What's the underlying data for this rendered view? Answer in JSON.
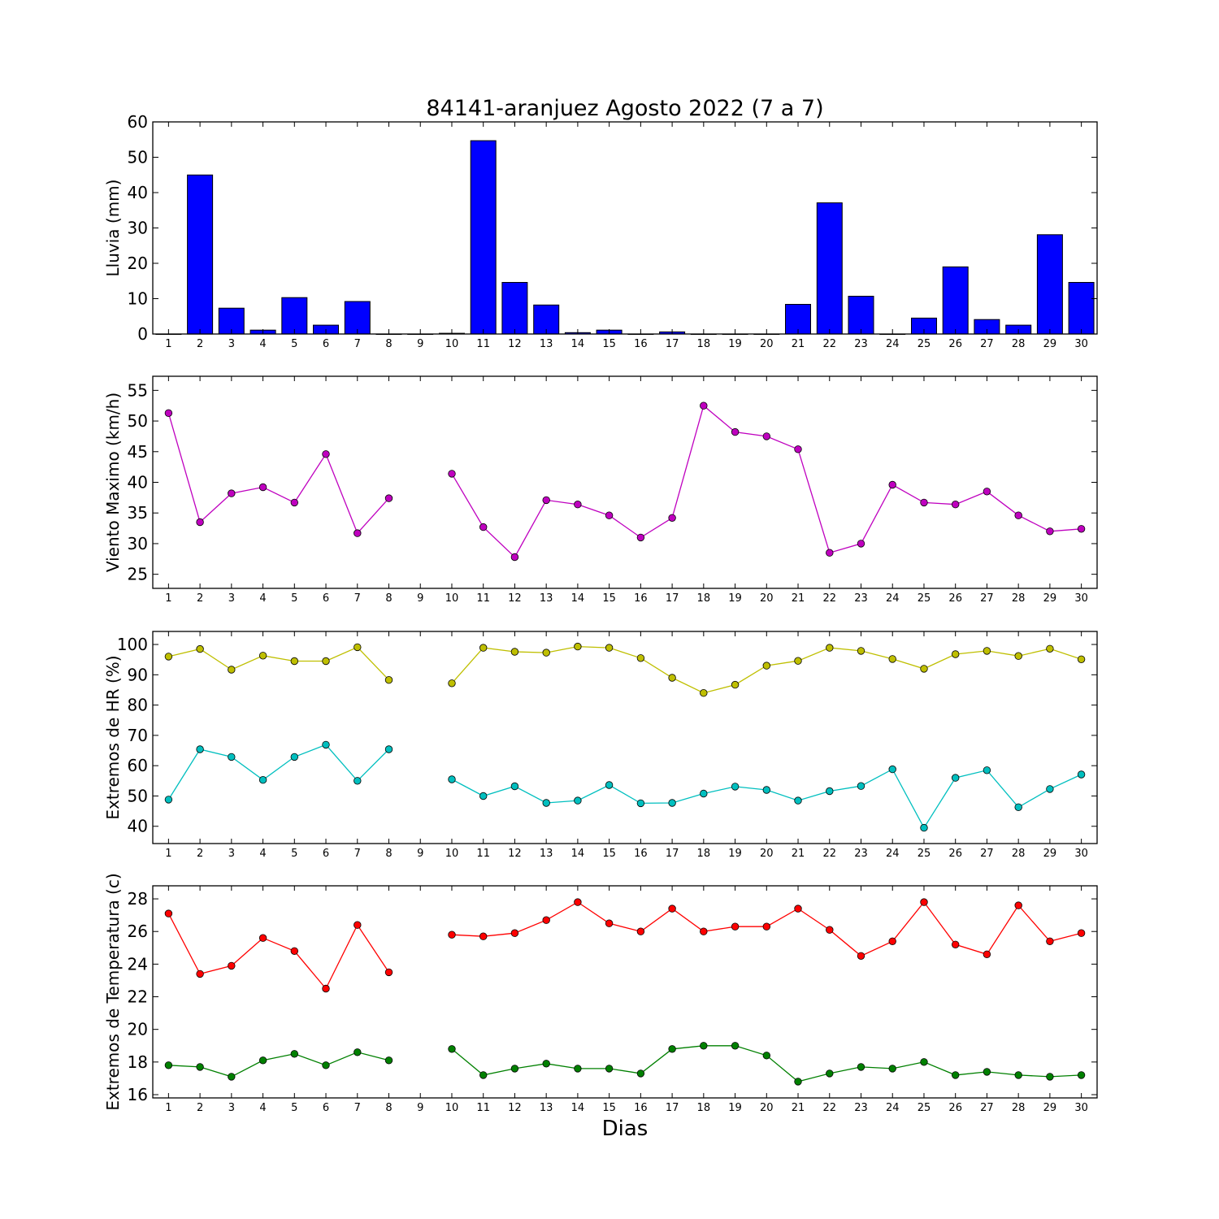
{
  "title": "84141-aranjuez Agosto 2022  (7 a 7)",
  "xlabel": "Dias",
  "chart_data": [
    {
      "type": "bar",
      "ylabel": "Lluvia (mm)",
      "ylim": [
        0,
        60
      ],
      "yticks": [
        0,
        10,
        20,
        30,
        40,
        50,
        60
      ],
      "color": "#0000ff",
      "categories": [
        1,
        2,
        3,
        4,
        5,
        6,
        7,
        8,
        9,
        10,
        11,
        12,
        13,
        14,
        15,
        16,
        17,
        18,
        19,
        20,
        21,
        22,
        23,
        24,
        25,
        26,
        27,
        28,
        29,
        30
      ],
      "values": [
        0,
        45,
        7.3,
        1.1,
        10.3,
        2.5,
        9.2,
        0,
        0,
        0.2,
        54.7,
        14.6,
        8.2,
        0.4,
        1.1,
        0,
        0.6,
        0,
        0,
        0,
        8.4,
        37.1,
        10.7,
        0,
        4.5,
        19,
        4.1,
        2.5,
        28.1,
        14.6
      ]
    },
    {
      "type": "line",
      "ylabel": "Viento Maximo (km/h)",
      "ylim": [
        22.7,
        57.3
      ],
      "yticks": [
        25,
        30,
        35,
        40,
        45,
        50,
        55
      ],
      "x": [
        1,
        2,
        3,
        4,
        5,
        6,
        7,
        8,
        9,
        10,
        11,
        12,
        13,
        14,
        15,
        16,
        17,
        18,
        19,
        20,
        21,
        22,
        23,
        24,
        25,
        26,
        27,
        28,
        29,
        30
      ],
      "series": [
        {
          "color": "#bf00bf",
          "values": [
            51.3,
            33.5,
            38.2,
            39.2,
            36.7,
            44.6,
            31.7,
            37.4,
            null,
            41.4,
            32.7,
            27.8,
            37.1,
            36.4,
            34.6,
            31,
            34.2,
            52.5,
            48.2,
            47.5,
            45.4,
            28.5,
            30,
            39.6,
            36.7,
            36.4,
            38.5,
            34.6,
            32,
            32.4
          ]
        }
      ]
    },
    {
      "type": "line",
      "ylabel": "Extremos de HR (%)",
      "ylim": [
        34.3,
        104.3
      ],
      "yticks": [
        40,
        50,
        60,
        70,
        80,
        90,
        100
      ],
      "x": [
        1,
        2,
        3,
        4,
        5,
        6,
        7,
        8,
        9,
        10,
        11,
        12,
        13,
        14,
        15,
        16,
        17,
        18,
        19,
        20,
        21,
        22,
        23,
        24,
        25,
        26,
        27,
        28,
        29,
        30
      ],
      "series": [
        {
          "color": "#bfbf00",
          "values": [
            96,
            98.5,
            91.7,
            96.3,
            94.5,
            94.5,
            99.1,
            88.3,
            null,
            87.2,
            98.9,
            97.6,
            97.3,
            99.3,
            98.9,
            95.5,
            89,
            84,
            86.7,
            93,
            94.6,
            98.9,
            97.9,
            95.2,
            92,
            96.8,
            97.9,
            96.2,
            98.6,
            95.1
          ]
        },
        {
          "color": "#00bfbf",
          "values": [
            48.8,
            65.4,
            62.9,
            55.3,
            62.9,
            66.9,
            55,
            65.4,
            null,
            55.5,
            50,
            53.2,
            47.7,
            48.5,
            53.6,
            47.6,
            47.7,
            50.8,
            53.1,
            52,
            48.5,
            51.6,
            53.3,
            58.8,
            39.5,
            56,
            58.5,
            46.3,
            52.3,
            57.1
          ]
        }
      ]
    },
    {
      "type": "line",
      "ylabel": "Extremos de Temperatura (c)",
      "ylim": [
        15.8,
        28.8
      ],
      "yticks": [
        16,
        18,
        20,
        22,
        24,
        26,
        28
      ],
      "x": [
        1,
        2,
        3,
        4,
        5,
        6,
        7,
        8,
        9,
        10,
        11,
        12,
        13,
        14,
        15,
        16,
        17,
        18,
        19,
        20,
        21,
        22,
        23,
        24,
        25,
        26,
        27,
        28,
        29,
        30
      ],
      "series": [
        {
          "color": "#ff0000",
          "values": [
            27.1,
            23.4,
            23.9,
            25.6,
            24.8,
            22.5,
            26.4,
            23.5,
            null,
            25.8,
            25.7,
            25.9,
            26.7,
            27.8,
            26.5,
            26,
            27.4,
            26,
            26.3,
            26.3,
            27.4,
            26.1,
            24.5,
            25.4,
            27.8,
            25.2,
            24.6,
            27.6,
            25.4,
            25.9
          ]
        },
        {
          "color": "#008000",
          "values": [
            17.8,
            17.7,
            17.1,
            18.1,
            18.5,
            17.8,
            18.6,
            18.1,
            null,
            18.8,
            17.2,
            17.6,
            17.9,
            17.6,
            17.6,
            17.3,
            18.8,
            19,
            19,
            18.4,
            16.8,
            17.3,
            17.7,
            17.6,
            18,
            17.2,
            17.4,
            17.2,
            17.1,
            17.2
          ]
        }
      ]
    }
  ]
}
